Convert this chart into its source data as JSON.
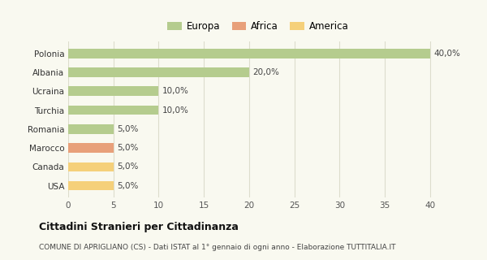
{
  "categories": [
    "Polonia",
    "Albania",
    "Ucraina",
    "Turchia",
    "Romania",
    "Marocco",
    "Canada",
    "USA"
  ],
  "values": [
    40.0,
    20.0,
    10.0,
    10.0,
    5.0,
    5.0,
    5.0,
    5.0
  ],
  "colors": [
    "#b5cc8e",
    "#b5cc8e",
    "#b5cc8e",
    "#b5cc8e",
    "#b5cc8e",
    "#e8a07a",
    "#f5d07a",
    "#f5d07a"
  ],
  "labels": [
    "40,0%",
    "20,0%",
    "10,0%",
    "10,0%",
    "5,0%",
    "5,0%",
    "5,0%",
    "5,0%"
  ],
  "legend": [
    {
      "label": "Europa",
      "color": "#b5cc8e"
    },
    {
      "label": "Africa",
      "color": "#e8a07a"
    },
    {
      "label": "America",
      "color": "#f5d07a"
    }
  ],
  "xlim": [
    0,
    42
  ],
  "xticks": [
    0,
    5,
    10,
    15,
    20,
    25,
    30,
    35,
    40
  ],
  "title": "Cittadini Stranieri per Cittadinanza",
  "subtitle": "COMUNE DI APRIGLIANO (CS) - Dati ISTAT al 1° gennaio di ogni anno - Elaborazione TUTTITALIA.IT",
  "background_color": "#f9f9f0",
  "grid_color": "#ddddcc"
}
